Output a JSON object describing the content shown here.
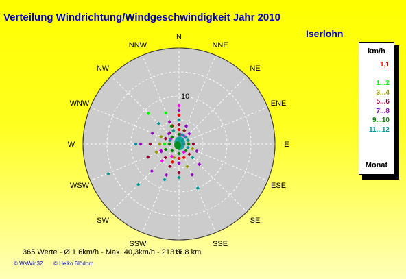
{
  "header": {
    "title": "Verteilung Windrichtung/Windgeschwindigkeit  Jahr 2010",
    "location": "Iserlohn"
  },
  "legend": {
    "unit": "km/h",
    "footer": "Monat",
    "entries": [
      {
        "label": "1,1",
        "color": "#ff0000"
      },
      {
        "label": "",
        "color": "#ff00ff"
      },
      {
        "label": "1...2",
        "color": "#00ff00"
      },
      {
        "label": "3...4",
        "color": "#999900"
      },
      {
        "label": "5...6",
        "color": "#990033"
      },
      {
        "label": "7...8",
        "color": "#9900cc"
      },
      {
        "label": "9...10",
        "color": "#008800"
      },
      {
        "label": "11...12",
        "color": "#009999"
      }
    ]
  },
  "footer": {
    "stats": "365 Werte   -   Ø 1,6km/h  -  Max. 40,3km/h   -   21316.8 km",
    "credit_left": "© WsWin32",
    "credit_right": "© Heiko Blödorn"
  },
  "colors": {
    "title": "#0000cc",
    "plot_area": "#cccccc",
    "grid": "#ffffff"
  },
  "chart_data": {
    "type": "scatter",
    "subtype": "polar-wind-rose",
    "directions": [
      "N",
      "NNE",
      "NE",
      "ENE",
      "E",
      "ESE",
      "SE",
      "SSE",
      "S",
      "SSW",
      "SW",
      "WSW",
      "W",
      "WNW",
      "NW",
      "NNW"
    ],
    "radial_tick_label": "10",
    "radial_max": 20,
    "ring_step": 5,
    "series": [
      {
        "color": "#ff0000",
        "points": [
          [
            0,
            3
          ],
          [
            0,
            5
          ],
          [
            0,
            6
          ],
          [
            90,
            1
          ],
          [
            180,
            3
          ],
          [
            270,
            2
          ],
          [
            340,
            4
          ],
          [
            200,
            4
          ],
          [
            160,
            3
          ]
        ]
      },
      {
        "color": "#ff00ff",
        "points": [
          [
            10,
            2
          ],
          [
            30,
            2
          ],
          [
            210,
            3
          ],
          [
            225,
            5
          ],
          [
            250,
            4
          ],
          [
            300,
            2
          ],
          [
            0,
            8
          ],
          [
            45,
            2
          ],
          [
            150,
            2
          ]
        ]
      },
      {
        "color": "#00ff00",
        "points": [
          [
            315,
            9
          ],
          [
            337,
            7
          ],
          [
            0,
            1
          ],
          [
            90,
            2
          ],
          [
            180,
            1
          ],
          [
            270,
            3
          ],
          [
            225,
            2
          ],
          [
            20,
            3
          ]
        ]
      },
      {
        "color": "#999900",
        "points": [
          [
            200,
            3
          ],
          [
            250,
            5
          ],
          [
            270,
            4
          ],
          [
            292,
            4
          ],
          [
            337,
            3
          ],
          [
            70,
            2
          ],
          [
            110,
            3
          ],
          [
            160,
            5
          ]
        ]
      },
      {
        "color": "#990033",
        "points": [
          [
            0,
            4
          ],
          [
            22,
            3
          ],
          [
            180,
            6
          ],
          [
            202,
            5
          ],
          [
            225,
            4
          ],
          [
            247,
            7
          ],
          [
            270,
            6
          ],
          [
            292,
            3
          ],
          [
            320,
            3
          ],
          [
            135,
            3
          ],
          [
            90,
            3
          ]
        ]
      },
      {
        "color": "#9900cc",
        "points": [
          [
            22,
            4
          ],
          [
            45,
            3
          ],
          [
            157,
            7
          ],
          [
            180,
            4
          ],
          [
            202,
            7
          ],
          [
            225,
            8
          ],
          [
            247,
            4
          ],
          [
            270,
            8
          ],
          [
            292,
            6
          ],
          [
            315,
            3
          ],
          [
            337,
            5
          ],
          [
            0,
            7
          ],
          [
            112,
            4
          ],
          [
            135,
            6
          ]
        ]
      },
      {
        "color": "#008800",
        "points": [
          [
            0,
            2
          ],
          [
            45,
            1
          ],
          [
            90,
            2
          ],
          [
            135,
            2
          ],
          [
            180,
            2
          ],
          [
            225,
            2
          ],
          [
            270,
            2
          ],
          [
            315,
            2
          ],
          [
            337,
            4
          ],
          [
            247,
            3
          ]
        ]
      },
      {
        "color": "#009999",
        "points": [
          [
            0,
            5
          ],
          [
            22,
            2
          ],
          [
            45,
            2
          ],
          [
            112,
            2
          ],
          [
            135,
            4
          ],
          [
            157,
            10
          ],
          [
            180,
            7
          ],
          [
            202,
            8
          ],
          [
            225,
            12
          ],
          [
            247,
            16
          ],
          [
            270,
            9
          ],
          [
            292,
            2
          ],
          [
            315,
            6
          ],
          [
            337,
            3
          ],
          [
            67,
            2
          ]
        ]
      }
    ]
  }
}
